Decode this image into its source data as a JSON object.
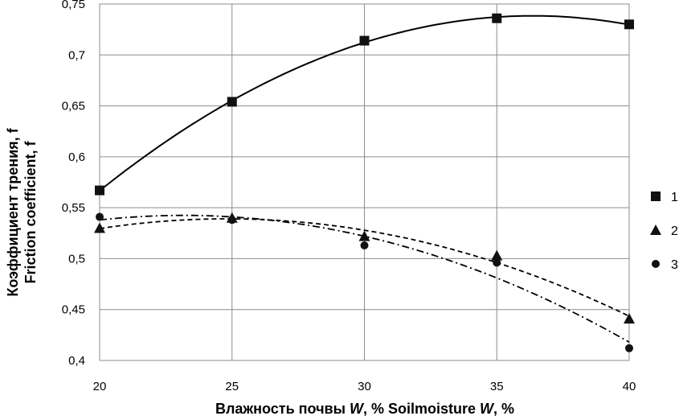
{
  "chart_data": {
    "type": "scatter",
    "title": "",
    "xlabel": "Влажность почвы W, % Soilmoisture W, %",
    "xlabel_parts": [
      "Влажность почвы ",
      "W",
      ", % Soilmoisture ",
      "W",
      ", %"
    ],
    "ylabel_lines": [
      "Коэффициент трения, f",
      "Friction coefficient, f"
    ],
    "xlim": [
      20,
      40
    ],
    "ylim": [
      0.4,
      0.75
    ],
    "x_ticks": [
      20,
      25,
      30,
      35,
      40
    ],
    "x_tick_labels": [
      "20",
      "25",
      "30",
      "35",
      "40"
    ],
    "y_ticks": [
      0.4,
      0.45,
      0.5,
      0.55,
      0.6,
      0.65,
      0.7,
      0.75
    ],
    "y_tick_labels": [
      "0,4",
      "0,45",
      "0,5",
      "0,55",
      "0,6",
      "0,65",
      "0,7",
      "0,75"
    ],
    "grid": true,
    "legend_placement": "right",
    "x": [
      20,
      25,
      30,
      35,
      40
    ],
    "series": [
      {
        "name": "1",
        "marker": "square",
        "trendline": "solid",
        "values": [
          0.567,
          0.654,
          0.714,
          0.736,
          0.73
        ]
      },
      {
        "name": "2",
        "marker": "triangle",
        "trendline": "dashed",
        "values": [
          0.53,
          0.54,
          0.522,
          0.503,
          0.441
        ]
      },
      {
        "name": "3",
        "marker": "circle",
        "trendline": "dashdot",
        "values": [
          0.541,
          0.538,
          0.513,
          0.496,
          0.412
        ]
      }
    ]
  }
}
